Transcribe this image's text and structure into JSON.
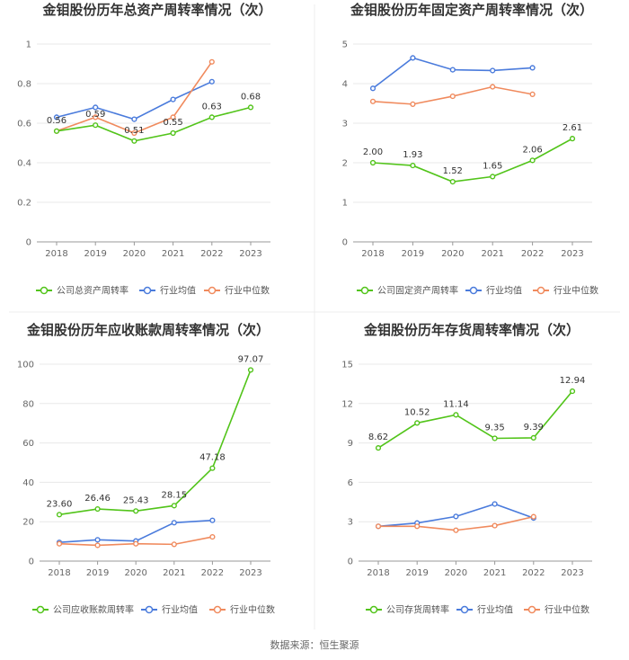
{
  "colors": {
    "company": "#52c41a",
    "avg": "#4a7bdc",
    "median": "#f08a5d"
  },
  "source": "数据来源：恒生聚源",
  "chart_data": [
    {
      "type": "line",
      "title": "金钼股份历年总资产周转率情况（次）",
      "categories": [
        "2018",
        "2019",
        "2020",
        "2021",
        "2022",
        "2023"
      ],
      "yticks": [
        "0",
        "0.2",
        "0.4",
        "0.6",
        "0.8",
        "1"
      ],
      "ylim": [
        0,
        1
      ],
      "series": [
        {
          "name": "公司总资产周转率",
          "role": "company",
          "values": [
            0.56,
            0.59,
            0.51,
            0.55,
            0.63,
            0.68
          ],
          "labels": [
            "0.56",
            "0.59",
            "0.51",
            "0.55",
            "0.63",
            "0.68"
          ]
        },
        {
          "name": "行业均值",
          "role": "avg",
          "values": [
            0.63,
            0.68,
            0.62,
            0.72,
            0.81,
            null
          ]
        },
        {
          "name": "行业中位数",
          "role": "median",
          "values": [
            0.56,
            0.63,
            0.55,
            0.63,
            0.91,
            null
          ]
        }
      ]
    },
    {
      "type": "line",
      "title": "金钼股份历年固定资产周转率情况（次）",
      "categories": [
        "2018",
        "2019",
        "2020",
        "2021",
        "2022",
        "2023"
      ],
      "yticks": [
        "0",
        "1",
        "2",
        "3",
        "4",
        "5"
      ],
      "ylim": [
        0,
        5
      ],
      "series": [
        {
          "name": "公司固定资产周转率",
          "role": "company",
          "values": [
            2.0,
            1.93,
            1.52,
            1.65,
            2.06,
            2.61
          ],
          "labels": [
            "2.00",
            "1.93",
            "1.52",
            "1.65",
            "2.06",
            "2.61"
          ]
        },
        {
          "name": "行业均值",
          "role": "avg",
          "values": [
            3.88,
            4.65,
            4.35,
            4.33,
            4.4,
            null
          ]
        },
        {
          "name": "行业中位数",
          "role": "median",
          "values": [
            3.55,
            3.48,
            3.68,
            3.92,
            3.73,
            null
          ]
        }
      ]
    },
    {
      "type": "line",
      "title": "金钼股份历年应收账款周转率情况（次）",
      "categories": [
        "2018",
        "2019",
        "2020",
        "2021",
        "2022",
        "2023"
      ],
      "yticks": [
        "0",
        "20",
        "40",
        "60",
        "80",
        "100"
      ],
      "ylim": [
        0,
        100
      ],
      "series": [
        {
          "name": "公司应收账款周转率",
          "role": "company",
          "values": [
            23.6,
            26.46,
            25.43,
            28.15,
            47.18,
            97.07
          ],
          "labels": [
            "23.60",
            "26.46",
            "25.43",
            "28.15",
            "47.18",
            "97.07"
          ]
        },
        {
          "name": "行业均值",
          "role": "avg",
          "values": [
            9.5,
            10.8,
            10.2,
            19.5,
            20.7,
            null
          ]
        },
        {
          "name": "行业中位数",
          "role": "median",
          "values": [
            8.8,
            8.0,
            8.8,
            8.5,
            12.3,
            null
          ]
        }
      ]
    },
    {
      "type": "line",
      "title": "金钼股份历年存货周转率情况（次）",
      "categories": [
        "2018",
        "2019",
        "2020",
        "2021",
        "2022",
        "2023"
      ],
      "yticks": [
        "0",
        "3",
        "6",
        "9",
        "12",
        "15"
      ],
      "ylim": [
        0,
        15
      ],
      "series": [
        {
          "name": "公司存货周转率",
          "role": "company",
          "values": [
            8.62,
            10.52,
            11.14,
            9.35,
            9.39,
            12.94
          ],
          "labels": [
            "8.62",
            "10.52",
            "11.14",
            "9.35",
            "9.39",
            "12.94"
          ]
        },
        {
          "name": "行业均值",
          "role": "avg",
          "values": [
            2.65,
            2.9,
            3.4,
            4.35,
            3.28,
            null
          ]
        },
        {
          "name": "行业中位数",
          "role": "median",
          "values": [
            2.65,
            2.65,
            2.35,
            2.7,
            3.38,
            null
          ]
        }
      ]
    }
  ]
}
